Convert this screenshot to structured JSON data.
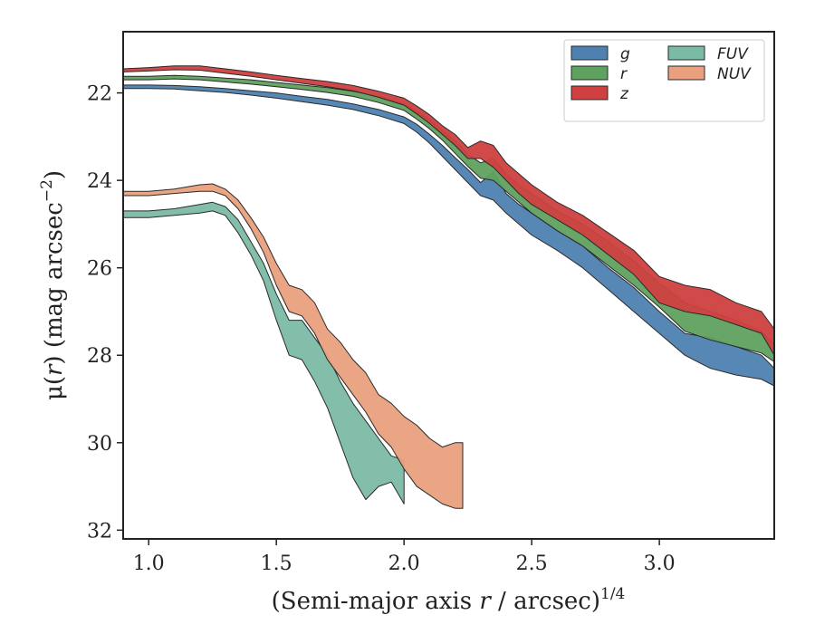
{
  "chart_data": {
    "type": "area",
    "xlabel_prefix": "(Semi-major axis ",
    "xlabel_var": "r",
    "xlabel_suffix": " / arcsec)",
    "xlabel_sup": "1/4",
    "ylabel_prefix": "μ(",
    "ylabel_var": "r",
    "ylabel_mid": ") (mag arcsec",
    "ylabel_sup": "−2",
    "ylabel_suffix": ")",
    "xlim": [
      0.9,
      3.45
    ],
    "ylim": [
      32.2,
      20.6
    ],
    "y_inverted": true,
    "xticks": [
      1.0,
      1.5,
      2.0,
      2.5,
      3.0
    ],
    "xtick_labels": [
      "1.0",
      "1.5",
      "2.0",
      "2.5",
      "3.0"
    ],
    "yticks": [
      22,
      24,
      26,
      28,
      30,
      32
    ],
    "ytick_labels": [
      "22",
      "24",
      "26",
      "28",
      "30",
      "32"
    ],
    "legend_position": "top-right",
    "legend_order": [
      "g",
      "FUV",
      "r",
      "NUV",
      "z"
    ],
    "series": [
      {
        "name": "g",
        "color": "#4e81b0",
        "x": [
          0.9,
          1.0,
          1.1,
          1.2,
          1.3,
          1.4,
          1.5,
          1.6,
          1.7,
          1.8,
          1.9,
          2.0,
          2.05,
          2.1,
          2.15,
          2.2,
          2.25,
          2.3,
          2.35,
          2.4,
          2.45,
          2.5,
          2.6,
          2.7,
          2.8,
          2.9,
          3.0,
          3.1,
          3.2,
          3.3,
          3.4,
          3.45
        ],
        "bright": [
          21.82,
          21.82,
          21.83,
          21.86,
          21.9,
          21.95,
          22.0,
          22.08,
          22.15,
          22.25,
          22.38,
          22.55,
          22.72,
          22.95,
          23.2,
          23.48,
          23.75,
          24.05,
          23.8,
          24.3,
          24.55,
          24.75,
          25.15,
          25.5,
          26.0,
          26.45,
          27.0,
          27.5,
          27.6,
          27.8,
          28.0,
          28.3
        ],
        "faint": [
          21.9,
          21.9,
          21.91,
          21.95,
          21.99,
          22.05,
          22.12,
          22.2,
          22.28,
          22.38,
          22.52,
          22.7,
          22.9,
          23.15,
          23.45,
          23.75,
          24.05,
          24.35,
          24.45,
          24.75,
          25.0,
          25.25,
          25.6,
          26.0,
          26.5,
          27.0,
          27.5,
          28.0,
          28.3,
          28.45,
          28.55,
          28.7
        ]
      },
      {
        "name": "r",
        "color": "#5fa15f",
        "x": [
          0.9,
          1.0,
          1.1,
          1.2,
          1.3,
          1.4,
          1.5,
          1.6,
          1.7,
          1.8,
          1.9,
          2.0,
          2.05,
          2.1,
          2.15,
          2.2,
          2.25,
          2.3,
          2.35,
          2.4,
          2.45,
          2.5,
          2.6,
          2.7,
          2.8,
          2.9,
          3.0,
          3.1,
          3.2,
          3.3,
          3.4,
          3.45
        ],
        "bright": [
          21.62,
          21.62,
          21.6,
          21.62,
          21.66,
          21.7,
          21.76,
          21.82,
          21.88,
          21.96,
          22.08,
          22.25,
          22.42,
          22.62,
          22.85,
          23.1,
          23.4,
          23.6,
          23.5,
          23.85,
          24.1,
          24.3,
          24.7,
          25.0,
          25.4,
          25.85,
          26.35,
          26.8,
          27.0,
          27.2,
          27.45,
          27.75
        ],
        "faint": [
          21.7,
          21.7,
          21.68,
          21.7,
          21.75,
          21.8,
          21.86,
          21.92,
          21.99,
          22.08,
          22.22,
          22.4,
          22.6,
          22.82,
          23.08,
          23.38,
          23.68,
          23.95,
          24.0,
          24.25,
          24.5,
          24.75,
          25.15,
          25.5,
          25.95,
          26.4,
          26.9,
          27.45,
          27.65,
          27.8,
          27.95,
          28.15
        ]
      },
      {
        "name": "z",
        "color": "#cf4040",
        "x": [
          0.9,
          1.0,
          1.1,
          1.2,
          1.3,
          1.4,
          1.5,
          1.6,
          1.7,
          1.8,
          1.9,
          2.0,
          2.05,
          2.1,
          2.15,
          2.2,
          2.25,
          2.3,
          2.35,
          2.4,
          2.45,
          2.5,
          2.6,
          2.7,
          2.8,
          2.9,
          3.0,
          3.1,
          3.2,
          3.3,
          3.4,
          3.45
        ],
        "bright": [
          21.45,
          21.42,
          21.38,
          21.38,
          21.45,
          21.52,
          21.6,
          21.67,
          21.74,
          21.83,
          21.96,
          22.12,
          22.3,
          22.5,
          22.75,
          22.95,
          23.25,
          23.1,
          23.2,
          23.6,
          23.85,
          24.1,
          24.5,
          24.8,
          25.2,
          25.6,
          26.2,
          26.4,
          26.5,
          26.8,
          27.0,
          27.4
        ],
        "faint": [
          21.52,
          21.5,
          21.47,
          21.48,
          21.55,
          21.62,
          21.7,
          21.78,
          21.86,
          21.95,
          22.1,
          22.28,
          22.48,
          22.7,
          22.95,
          23.2,
          23.5,
          23.5,
          23.7,
          24.0,
          24.3,
          24.55,
          24.9,
          25.25,
          25.7,
          26.15,
          26.8,
          27.0,
          27.1,
          27.3,
          27.5,
          28.0
        ]
      },
      {
        "name": "FUV",
        "color": "#7bbaa5",
        "x": [
          0.9,
          1.0,
          1.1,
          1.2,
          1.25,
          1.3,
          1.35,
          1.4,
          1.45,
          1.5,
          1.55,
          1.6,
          1.65,
          1.7,
          1.75,
          1.8,
          1.85,
          1.9,
          1.95,
          2.0
        ],
        "bright": [
          24.7,
          24.7,
          24.65,
          24.55,
          24.5,
          24.6,
          24.9,
          25.4,
          25.9,
          26.6,
          27.2,
          27.2,
          27.6,
          28.0,
          28.6,
          29.1,
          29.5,
          29.9,
          30.3,
          30.4
        ],
        "faint": [
          24.85,
          24.85,
          24.8,
          24.75,
          24.7,
          24.8,
          25.2,
          25.7,
          26.3,
          27.2,
          28.0,
          28.1,
          28.6,
          29.2,
          30.0,
          30.8,
          31.3,
          31.0,
          30.9,
          31.4
        ]
      },
      {
        "name": "NUV",
        "color": "#e9a07e",
        "x": [
          0.9,
          1.0,
          1.1,
          1.2,
          1.25,
          1.3,
          1.35,
          1.4,
          1.45,
          1.5,
          1.55,
          1.6,
          1.65,
          1.7,
          1.75,
          1.8,
          1.85,
          1.9,
          1.95,
          2.0,
          2.05,
          2.1,
          2.15,
          2.2,
          2.23
        ],
        "bright": [
          24.25,
          24.25,
          24.2,
          24.1,
          24.08,
          24.2,
          24.45,
          24.85,
          25.3,
          25.9,
          26.4,
          26.5,
          26.8,
          27.4,
          27.7,
          28.1,
          28.4,
          28.9,
          29.1,
          29.4,
          29.6,
          29.9,
          30.1,
          30.0,
          30.0
        ],
        "faint": [
          24.35,
          24.35,
          24.3,
          24.25,
          24.25,
          24.35,
          24.65,
          25.1,
          25.65,
          26.4,
          27.0,
          27.1,
          27.5,
          28.1,
          28.5,
          28.9,
          29.3,
          29.8,
          30.1,
          30.6,
          31.0,
          31.2,
          31.4,
          31.5,
          31.5
        ]
      }
    ]
  }
}
